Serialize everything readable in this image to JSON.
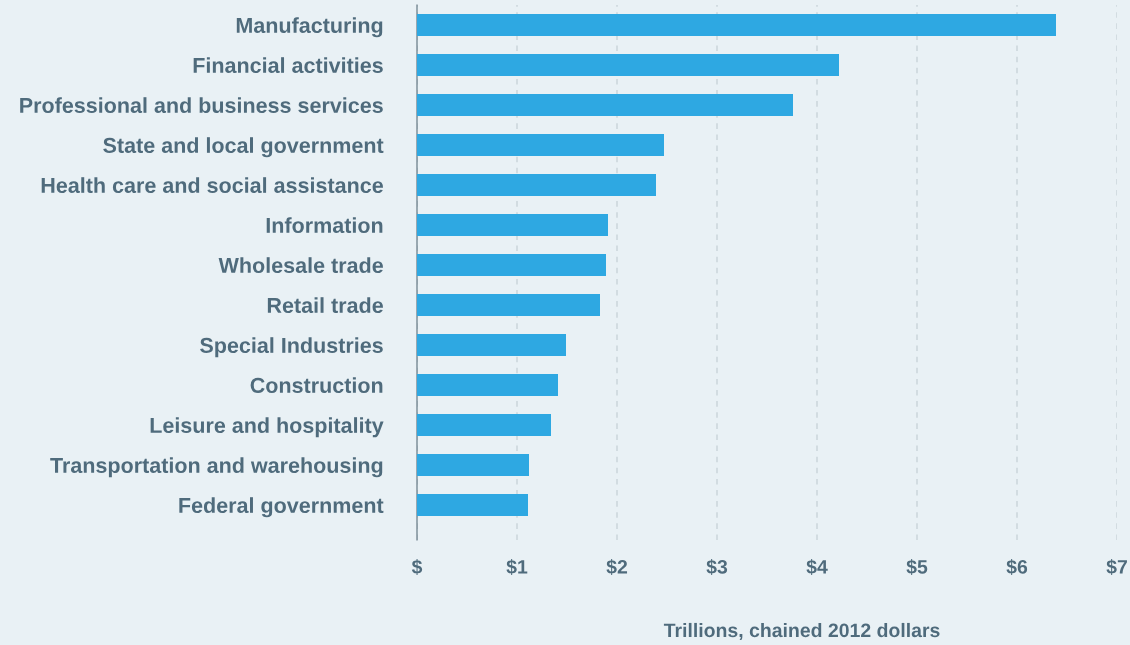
{
  "chart_data": {
    "type": "bar",
    "orientation": "horizontal",
    "xlabel": "Trillions, chained 2012 dollars",
    "categories": [
      "Manufacturing",
      "Financial activities",
      "Professional and business services",
      "State and local government",
      "Health care and social assistance",
      "Information",
      "Wholesale trade",
      "Retail trade",
      "Special Industries",
      "Construction",
      "Leisure and hospitality",
      "Transportation and warehousing",
      "Federal government"
    ],
    "values": [
      6.39,
      4.22,
      3.76,
      2.47,
      2.39,
      1.91,
      1.89,
      1.83,
      1.49,
      1.41,
      1.34,
      1.12,
      1.11
    ],
    "color": "#2ea8e2",
    "xlim": [
      0,
      7
    ],
    "xticks": [
      {
        "value": 0,
        "label": "$"
      },
      {
        "value": 1,
        "label": "$1"
      },
      {
        "value": 2,
        "label": "$2"
      },
      {
        "value": 3,
        "label": "$3"
      },
      {
        "value": 4,
        "label": "$4"
      },
      {
        "value": 5,
        "label": "$5"
      },
      {
        "value": 6,
        "label": "$6"
      },
      {
        "value": 7,
        "label": "$7"
      }
    ],
    "grid": "x"
  }
}
